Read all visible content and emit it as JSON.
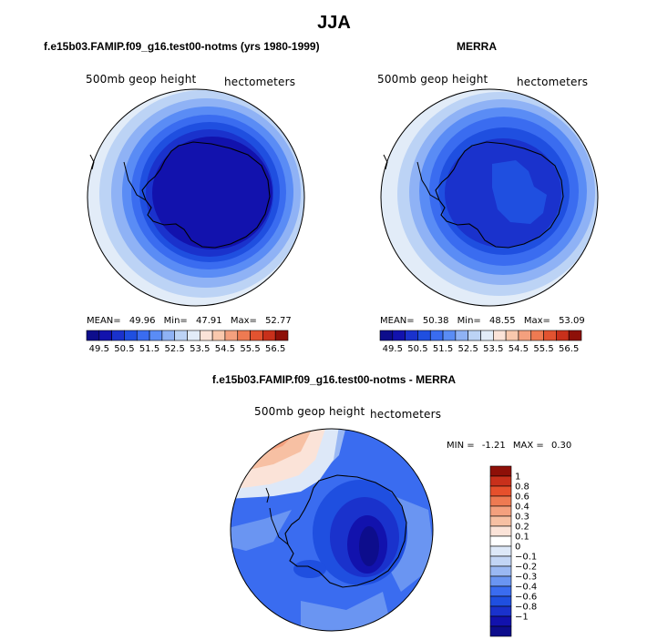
{
  "season": "JJA",
  "colors": {
    "abs_scale": [
      "#0d0d8c",
      "#1212ad",
      "#1a32cc",
      "#1f4fe0",
      "#3a6cf0",
      "#5a8cf5",
      "#8fb2f5",
      "#bcd3f5",
      "#e2ecf8",
      "#fbe3d8",
      "#f9c8ad",
      "#f4a07e",
      "#ee7a52",
      "#e25330",
      "#c8301b",
      "#8e1008"
    ],
    "diff_scale": [
      "#0d0d8c",
      "#1212ad",
      "#1a32cc",
      "#1f4fe0",
      "#3a6cf0",
      "#6a95f2",
      "#9ab8f3",
      "#c2d5f5",
      "#dde8f8",
      "#ffffff",
      "#fbe3d8",
      "#f7c0a3",
      "#f4a07e",
      "#ee7a52",
      "#e6502c",
      "#c8301b",
      "#8e1008"
    ]
  },
  "panels": {
    "model": {
      "title": "f.e15b03.FAMIP.f09_g16.test00-notms (yrs 1980-1999)",
      "variable": "500mb geop height",
      "units": "hectometers",
      "stats": {
        "mean_label": "MEAN=",
        "mean": "49.96",
        "min_label": "Min=",
        "min": "47.91",
        "max_label": "Max=",
        "max": "52.77"
      }
    },
    "obs": {
      "title": "MERRA",
      "variable": "500mb geop height",
      "units": "hectometers",
      "stats": {
        "mean_label": "MEAN=",
        "mean": "50.38",
        "min_label": "Min=",
        "min": "48.55",
        "max_label": "Max=",
        "max": "53.09"
      }
    },
    "diff": {
      "title": "f.e15b03.FAMIP.f09_g16.test00-notms - MERRA",
      "variable": "500mb geop height",
      "units": "hectometers",
      "minmax": {
        "min_label": "MIN =",
        "min": "-1.21",
        "max_label": "MAX =",
        "max": "0.30"
      }
    }
  },
  "abs_ticks": [
    "49.5",
    "50.5",
    "51.5",
    "52.5",
    "53.5",
    "54.5",
    "55.5",
    "56.5"
  ],
  "diff_ticks": [
    "1",
    "0.8",
    "0.6",
    "0.4",
    "0.3",
    "0.2",
    "0.1",
    "0",
    "−0.1",
    "−0.2",
    "−0.3",
    "−0.4",
    "−0.6",
    "−0.8",
    "−1"
  ]
}
